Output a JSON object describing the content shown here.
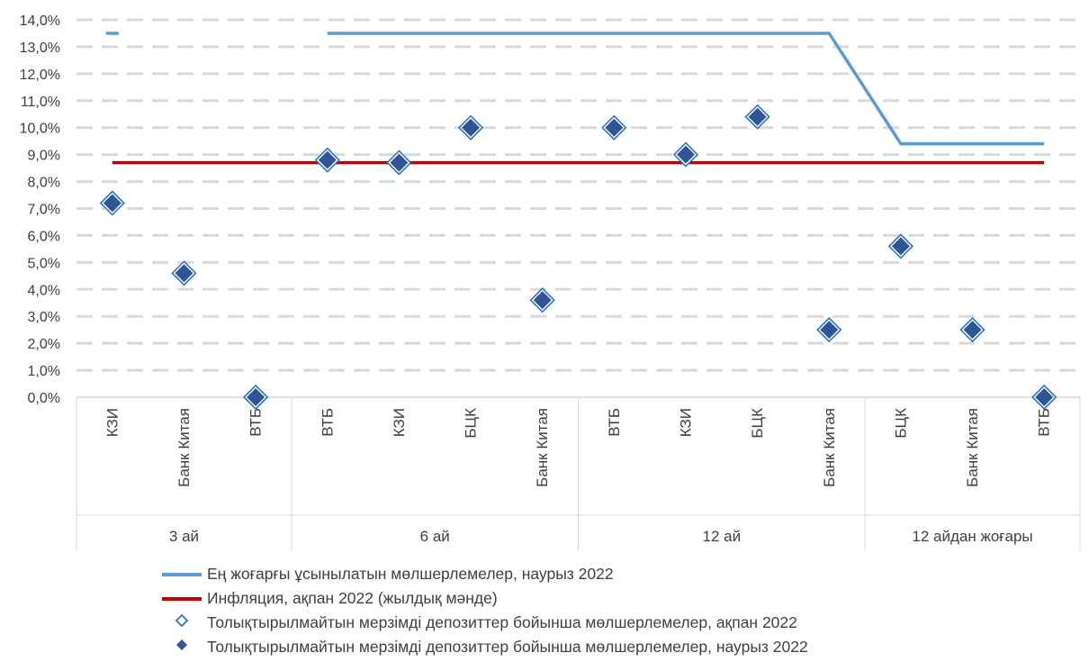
{
  "chart_data": {
    "type": "scatter",
    "y_ticks": [
      "0,0%",
      "1,0%",
      "2,0%",
      "3,0%",
      "4,0%",
      "5,0%",
      "6,0%",
      "7,0%",
      "8,0%",
      "9,0%",
      "10,0%",
      "11,0%",
      "12,0%",
      "13,0%",
      "14,0%"
    ],
    "ylim": [
      0,
      14
    ],
    "grid": true,
    "legend_position": "bottom",
    "groups": [
      {
        "label": "3 ай",
        "categories": [
          "КЗИ",
          "Банк Китая",
          "ВТБ"
        ]
      },
      {
        "label": "6 ай",
        "categories": [
          "ВТБ",
          "КЗИ",
          "БЦК",
          "Банк Китая"
        ]
      },
      {
        "label": "12 ай",
        "categories": [
          "ВТБ",
          "КЗИ",
          "БЦК",
          "Банк Китая"
        ]
      },
      {
        "label": "12 айдан жоғары",
        "categories": [
          "БЦК",
          "Банк Китая",
          "ВТБ"
        ]
      }
    ],
    "series": [
      {
        "name": "Ең жоғарғы ұсынылатын мөлшерлемелер, наурыз 2022",
        "kind": "line",
        "color": "#5B9BD5",
        "values": [
          13.5,
          null,
          null,
          13.5,
          13.5,
          13.5,
          13.5,
          13.5,
          13.5,
          13.5,
          13.5,
          9.4,
          9.4,
          9.4
        ]
      },
      {
        "name": "Инфляция, ақпан 2022 (жылдық мәнде)",
        "kind": "line",
        "color": "#C00000",
        "values": [
          8.7,
          8.7,
          8.7,
          8.7,
          8.7,
          8.7,
          8.7,
          8.7,
          8.7,
          8.7,
          8.7,
          8.7,
          8.7,
          8.7
        ]
      },
      {
        "name": "Толықтырылмайтын мерзімді депозиттер бойынша мөлшерлемелер, ақпан 2022",
        "kind": "marker-hollow",
        "color": "#2E75B6",
        "values": [
          7.2,
          4.6,
          0.0,
          8.8,
          8.7,
          10.0,
          3.6,
          10.0,
          9.0,
          10.4,
          2.5,
          5.6,
          2.5,
          0.0
        ]
      },
      {
        "name": "Толықтырылмайтын мерзімді депозиттер бойынша мөлшерлемелер, наурыз 2022",
        "kind": "marker-filled",
        "color": "#2F5597",
        "values": [
          7.2,
          4.6,
          0.0,
          8.8,
          8.7,
          10.0,
          3.6,
          10.0,
          9.0,
          10.4,
          2.5,
          5.6,
          2.5,
          0.0
        ]
      }
    ]
  }
}
